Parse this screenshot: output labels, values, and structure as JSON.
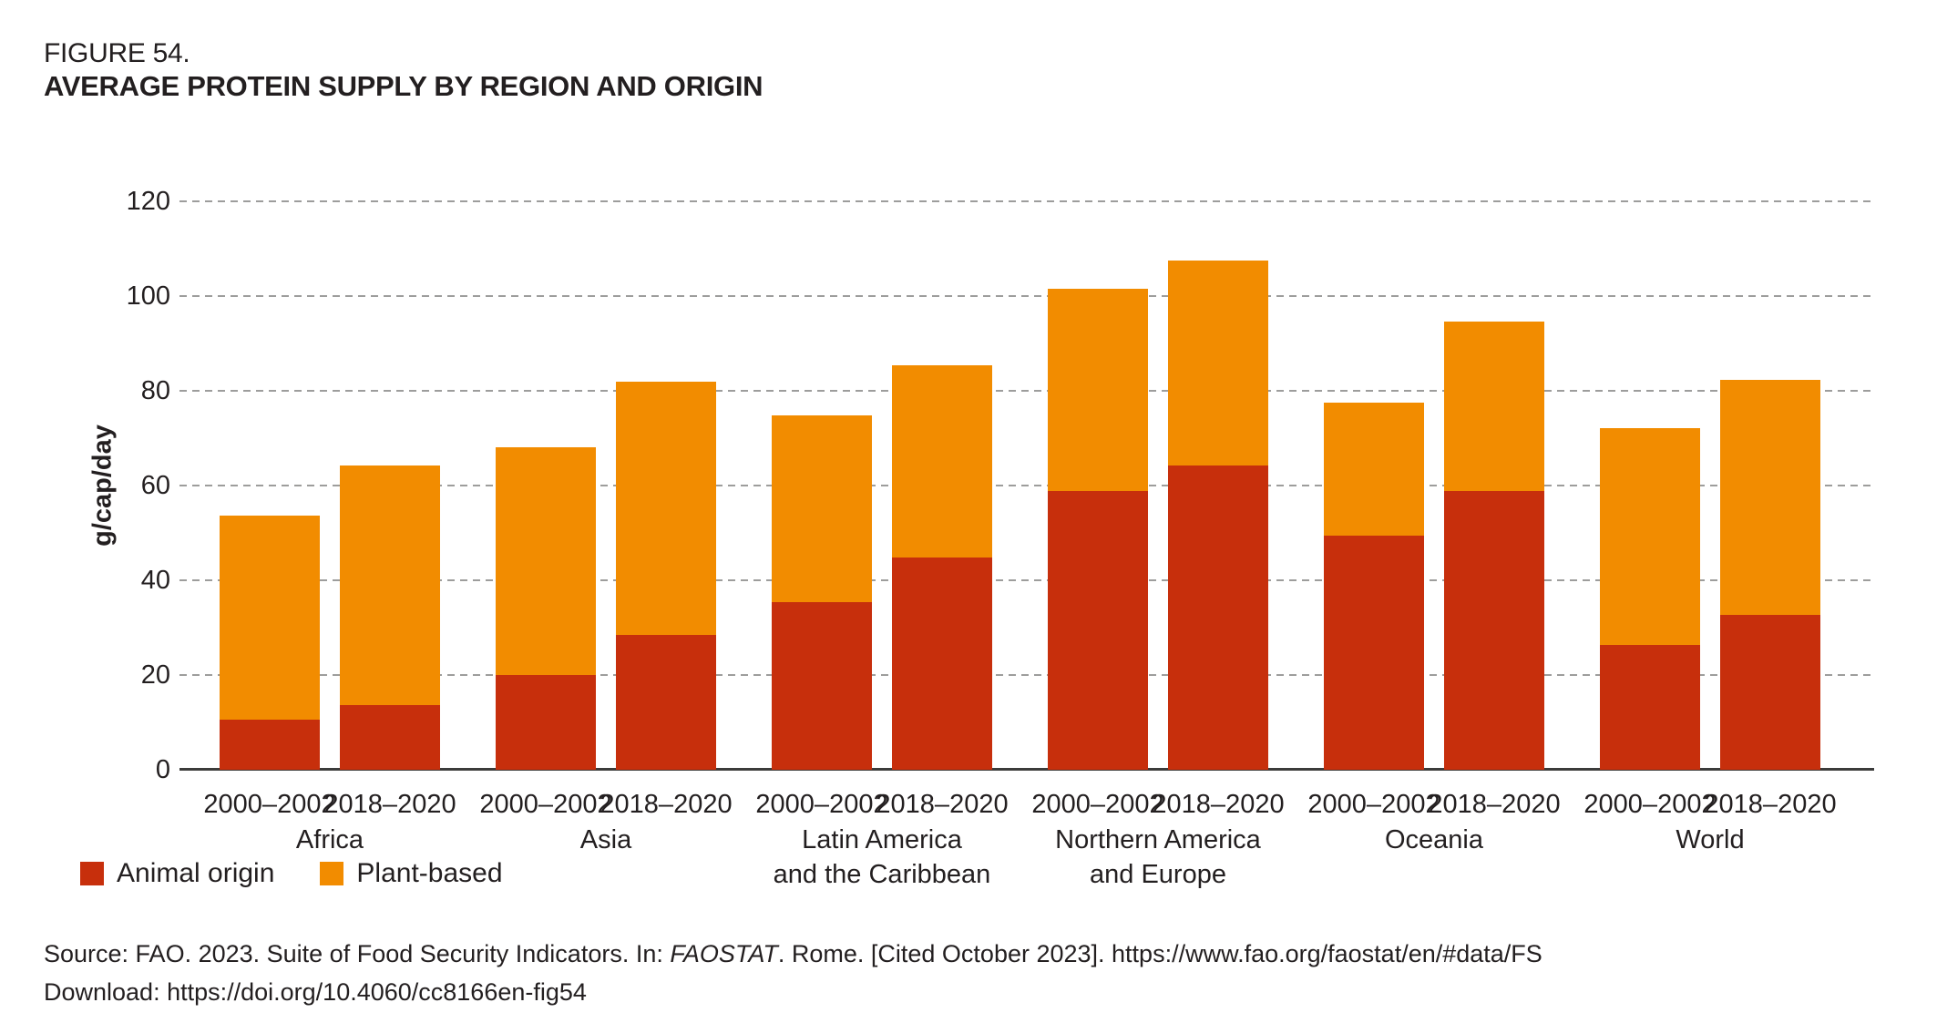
{
  "figure": {
    "label": "FIGURE 54.",
    "title": "AVERAGE PROTEIN SUPPLY BY REGION AND ORIGIN"
  },
  "chart_data": {
    "type": "bar",
    "stacked": true,
    "title": "AVERAGE PROTEIN SUPPLY BY REGION AND ORIGIN",
    "xlabel": "",
    "ylabel": "g/cap/day",
    "ylim": [
      0,
      120
    ],
    "yticks": [
      0,
      20,
      40,
      60,
      80,
      100,
      120
    ],
    "grid": "horizontal-dashed",
    "legend_position": "bottom-left",
    "periods": [
      "2000–2002",
      "2018–2020"
    ],
    "categories": [
      [
        "Africa"
      ],
      [
        "Asia"
      ],
      [
        "Latin America",
        "and the Caribbean"
      ],
      [
        "Northern America",
        "and Europe"
      ],
      [
        "Oceania"
      ],
      [
        "World"
      ]
    ],
    "series": [
      {
        "name": "Animal origin",
        "color": "#C72F0C",
        "values": [
          [
            10.5,
            13.7
          ],
          [
            20.0,
            28.5
          ],
          [
            35.4,
            44.8
          ],
          [
            58.8,
            64.3
          ],
          [
            49.4,
            58.8
          ],
          [
            26.3,
            32.6
          ]
        ]
      },
      {
        "name": "Plant-based",
        "color": "#F28C00",
        "values": [
          [
            43.2,
            50.5
          ],
          [
            48.1,
            53.4
          ],
          [
            39.5,
            40.6
          ],
          [
            42.7,
            43.2
          ],
          [
            28.2,
            35.8
          ],
          [
            45.9,
            49.8
          ]
        ]
      }
    ]
  },
  "legend": {
    "items": [
      {
        "label": "Animal origin",
        "color": "#C72F0C"
      },
      {
        "label": "Plant-based",
        "color": "#F28C00"
      }
    ]
  },
  "source": {
    "line1_prefix": "Source: FAO. 2023. Suite of Food Security Indicators. In: ",
    "line1_italic": "FAOSTAT",
    "line1_suffix": ". Rome. [Cited October 2023]. https://www.fao.org/faostat/en/#data/FS",
    "line2": "Download: https://doi.org/10.4060/cc8166en-fig54"
  },
  "colors": {
    "text": "#231F20",
    "gridline": "#9D9D9C",
    "axis": "#3C3C3B",
    "background": "#FFFFFF"
  }
}
